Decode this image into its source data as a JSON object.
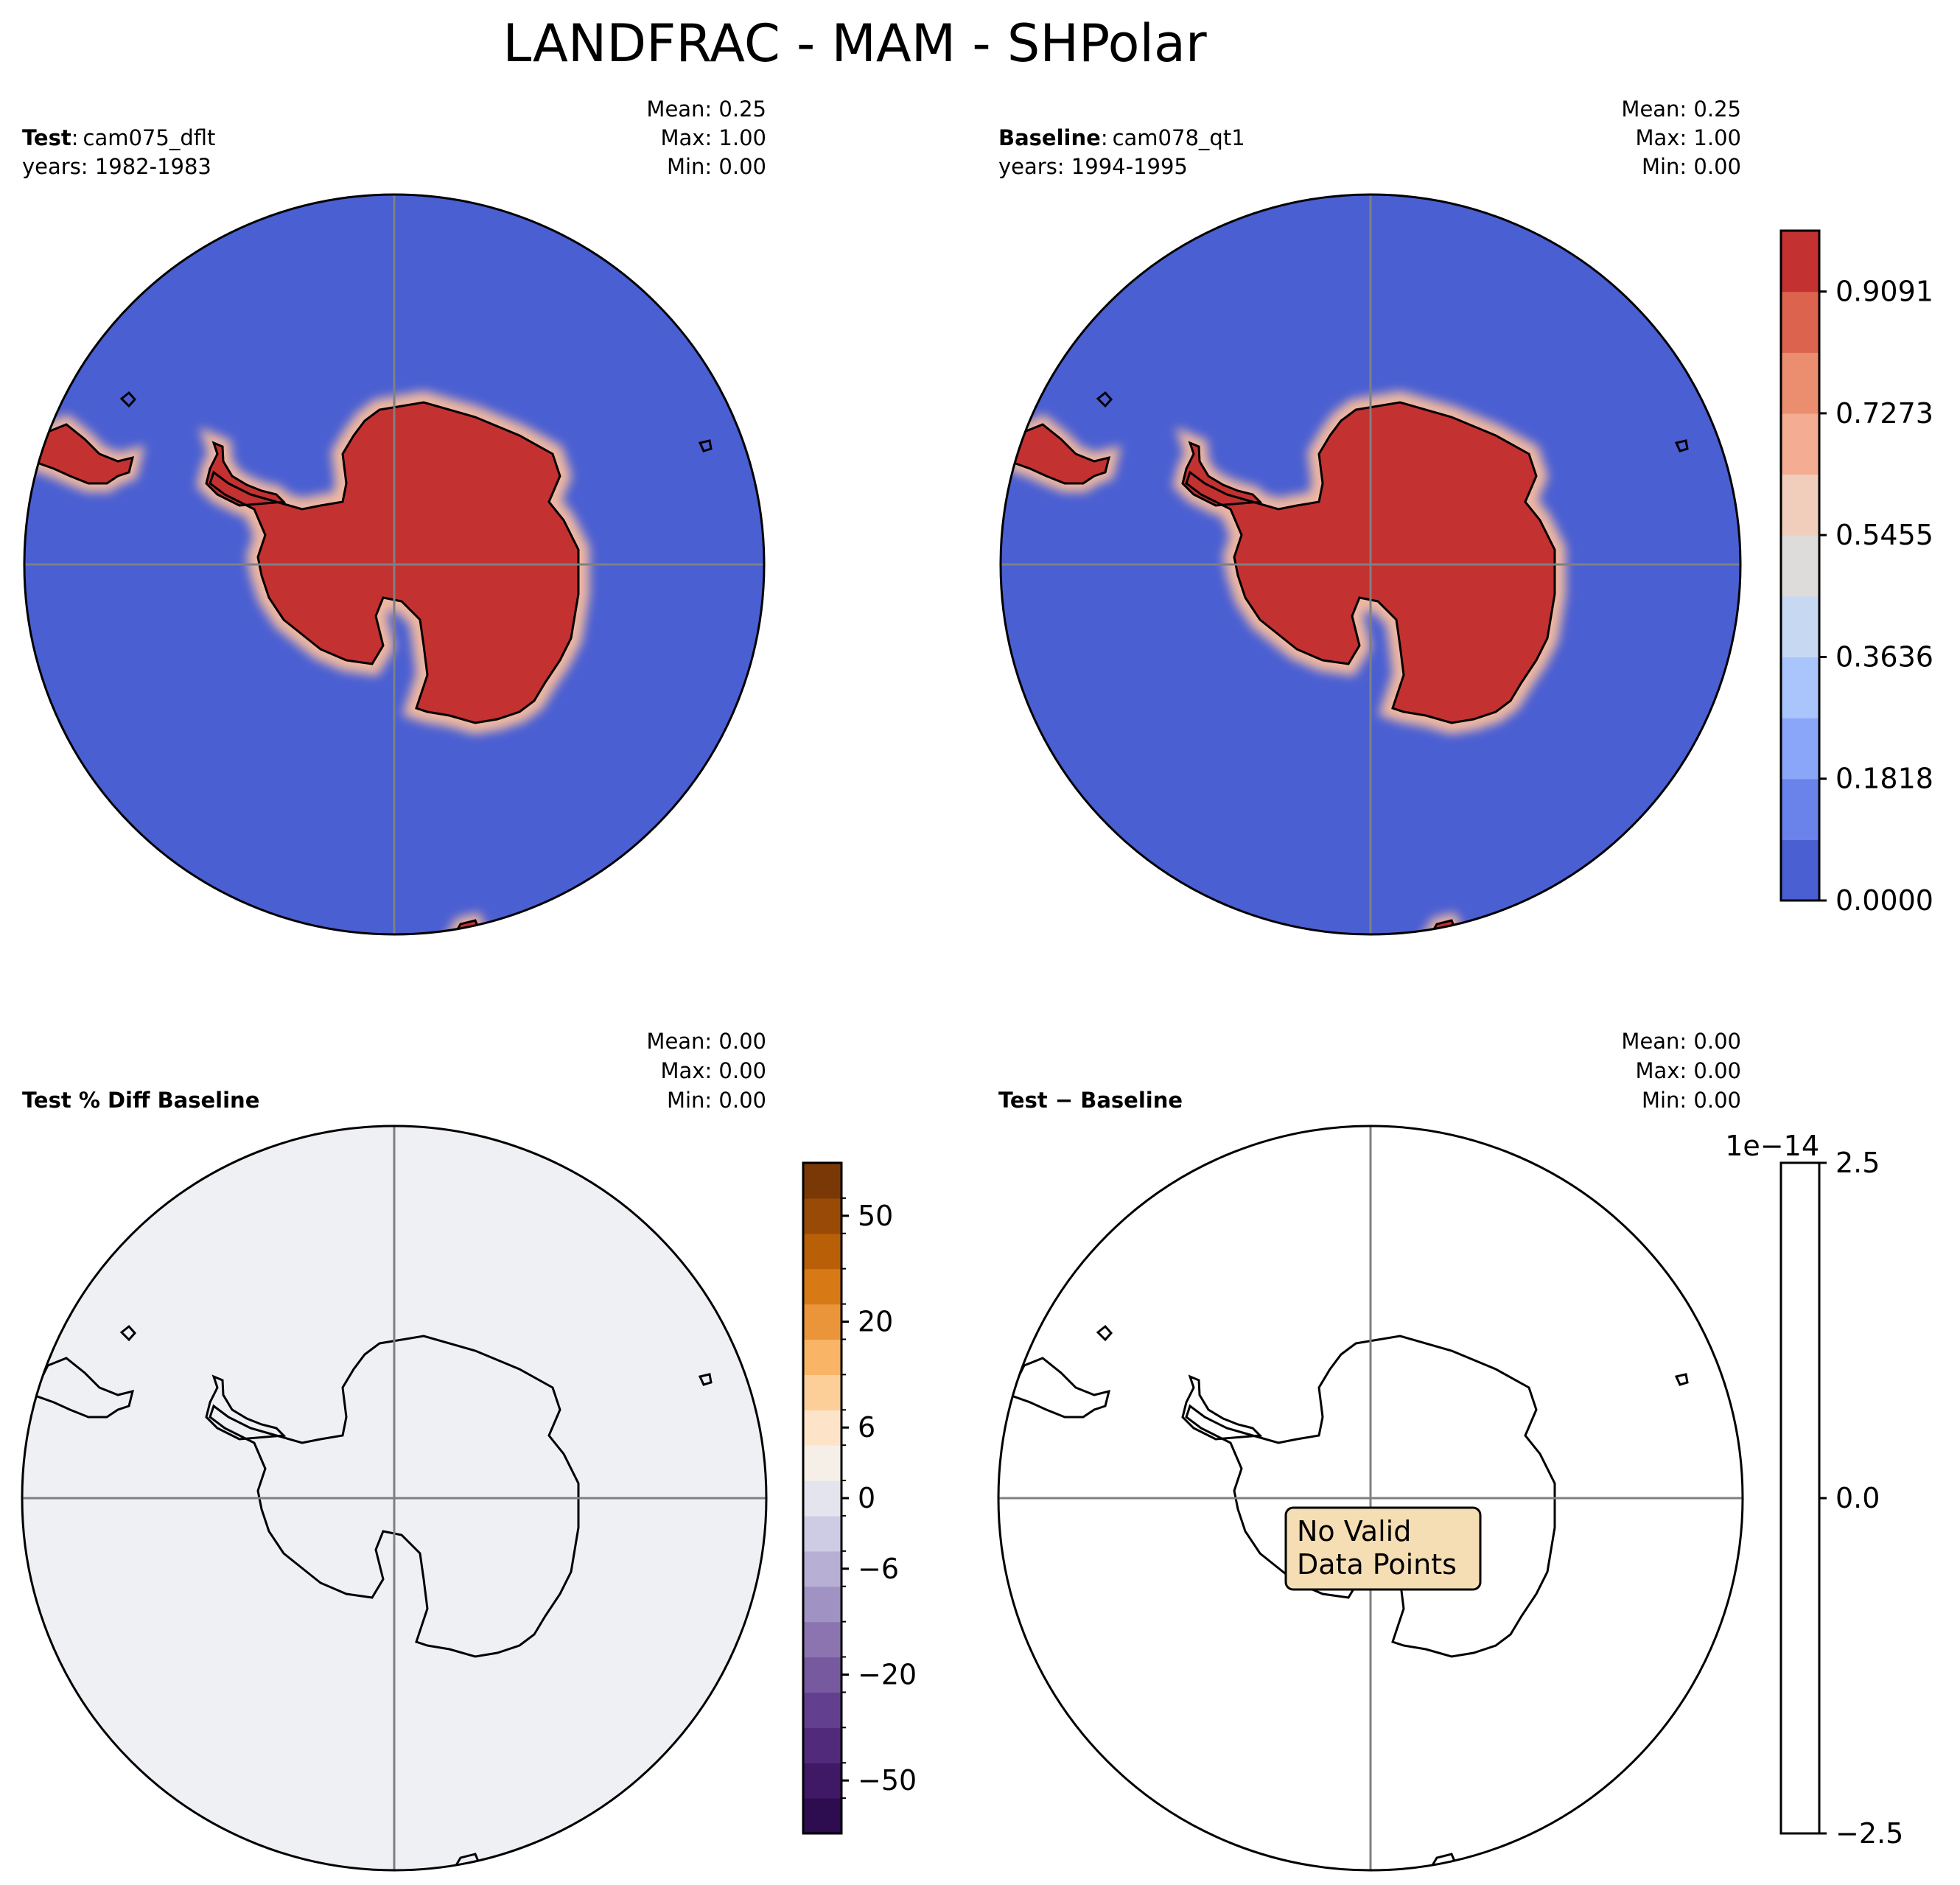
{
  "figure": {
    "title": "LANDFRAC - MAM - SHPolar"
  },
  "colors": {
    "ocean": "#4a5fd2",
    "land": "#c43131",
    "halo": "#f0b8a0",
    "diff_fill": "#eef0f4",
    "coast": "#000000",
    "grid": "#808080",
    "nodata_box": "#f5deb3"
  },
  "panels": [
    {
      "id": "test",
      "label_bold": "Test",
      "label_sep": ":",
      "label_rest": "cam075_dflt",
      "years": "years: 1982-1983",
      "stats": {
        "mean": "Mean:  0.25",
        "max": "Max:  1.00",
        "min": "Min:  0.00"
      }
    },
    {
      "id": "baseline",
      "label_bold": "Baseline",
      "label_sep": ":",
      "label_rest": "cam078_qt1",
      "years": "years: 1994-1995",
      "stats": {
        "mean": "Mean:  0.25",
        "max": "Max:  1.00",
        "min": "Min:  0.00"
      }
    },
    {
      "id": "pctdiff",
      "label_bold": "Test % Diff Baseline",
      "stats": {
        "mean": "Mean:  0.00",
        "max": "Max:  0.00",
        "min": "Min:  0.00"
      }
    },
    {
      "id": "diff",
      "label_bold": "Test − Baseline",
      "stats": {
        "mean": "Mean:  0.00",
        "max": "Max:  0.00",
        "min": "Min:  0.00"
      },
      "no_data_line1": "No Valid",
      "no_data_line2": "Data Points"
    }
  ],
  "colorbars": {
    "main": {
      "levels": 11,
      "range": [
        0,
        1
      ],
      "colors": [
        "#4a5fd2",
        "#6a83ea",
        "#8aa6f8",
        "#aac5fb",
        "#c7d8f3",
        "#dddcdb",
        "#f1cdbb",
        "#f4ad92",
        "#eb8d6f",
        "#dc634e",
        "#c43131"
      ],
      "tick_labels": [
        "0.0000",
        "0.1818",
        "0.3636",
        "0.5455",
        "0.7273",
        "0.9091"
      ],
      "tick_values": [
        0,
        0.1818,
        0.3636,
        0.5455,
        0.7273,
        0.9091
      ]
    },
    "pctdiff": {
      "colors": [
        "#2d0d4f",
        "#3f1866",
        "#522a7c",
        "#63408f",
        "#76599f",
        "#8b74b0",
        "#a092c2",
        "#b7b0d4",
        "#cecce4",
        "#e4e4ef",
        "#f6efe7",
        "#fde4c8",
        "#fdcf98",
        "#f9b466",
        "#eb953a",
        "#d77a16",
        "#b95f08",
        "#994a06",
        "#7a3807"
      ],
      "tick_labels": [
        "−50",
        "−20",
        "−6",
        "0",
        "6",
        "20",
        "50"
      ],
      "tick_bins": [
        1.5,
        4.5,
        7.5,
        9.5,
        11.5,
        14.5,
        17.5
      ]
    },
    "diff": {
      "range": [
        -2.5,
        2.5
      ],
      "tick_labels": [
        "−2.5",
        "0.0",
        "2.5"
      ],
      "tick_values": [
        -2.5,
        0.0,
        2.5
      ],
      "offset_label": "1e−14"
    }
  }
}
